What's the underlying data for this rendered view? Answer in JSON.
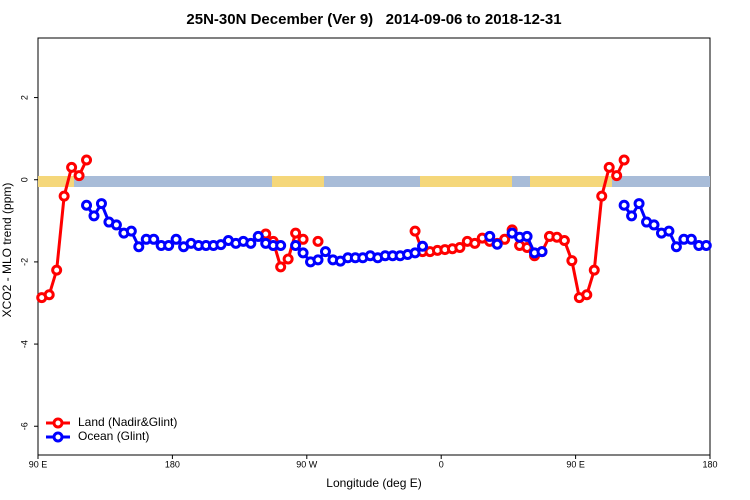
{
  "chart_data": {
    "type": "line",
    "title": "25N-30N December (Ver 9)   2014-09-06 to 2018-12-31",
    "x_label": "Longitude (deg E)",
    "y_label": "XCO2 - MLO trend (ppm)",
    "xlim": [
      90,
      540
    ],
    "ylim": [
      -6.7,
      3.45
    ],
    "xticks": [
      {
        "value": 90,
        "label": "90 E"
      },
      180,
      {
        "value": 270,
        "label": "90 W"
      },
      {
        "value": 360,
        "label": "0"
      },
      {
        "value": 450,
        "label": "90 E"
      },
      {
        "value": 540,
        "label": "180"
      }
    ],
    "yticks": [
      -6,
      -4,
      -2,
      0,
      2
    ],
    "legend": "bottom-left",
    "x": [
      92.5,
      97.5,
      102.5,
      107.5,
      112.5,
      117.5,
      122.5,
      127.5,
      132.5,
      137.5,
      142.5,
      147.5,
      152.5,
      157.5,
      162.5,
      167.5,
      172.5,
      177.5,
      182.5,
      187.5,
      192.5,
      197.5,
      202.5,
      207.5,
      212.5,
      217.5,
      222.5,
      227.5,
      232.5,
      237.5,
      242.5,
      247.5,
      252.5,
      257.5,
      262.5,
      267.5,
      272.5,
      277.5,
      282.5,
      287.5,
      292.5,
      297.5,
      302.5,
      307.5,
      312.5,
      317.5,
      322.5,
      327.5,
      332.5,
      337.5,
      342.5,
      347.5,
      352.5,
      357.5,
      362.5,
      367.5,
      372.5,
      377.5,
      382.5,
      387.5,
      392.5,
      397.5,
      402.5,
      407.5,
      412.5,
      417.5,
      422.5,
      427.5,
      432.5,
      437.5,
      442.5,
      447.5,
      452.5,
      457.5,
      462.5,
      467.5,
      472.5,
      477.5,
      482.5,
      487.5,
      492.5,
      497.5,
      502.5,
      507.5,
      512.5,
      517.5,
      522.5,
      527.5,
      532.5,
      537.5
    ],
    "series": [
      {
        "name": "Land (Nadir&Glint)",
        "color": "#ff0000",
        "values": [
          -2.87,
          -2.8,
          -2.2,
          -0.4,
          0.3,
          0.1,
          0.48,
          null,
          null,
          null,
          null,
          null,
          null,
          null,
          null,
          null,
          null,
          null,
          null,
          null,
          null,
          null,
          null,
          null,
          null,
          null,
          null,
          null,
          null,
          null,
          -1.32,
          -1.5,
          -2.12,
          -1.93,
          -1.3,
          -1.45,
          null,
          -1.5,
          null,
          null,
          null,
          null,
          null,
          null,
          null,
          null,
          null,
          null,
          null,
          null,
          -1.25,
          -1.75,
          -1.75,
          -1.72,
          -1.7,
          -1.68,
          -1.65,
          -1.5,
          -1.55,
          -1.42,
          -1.5,
          -1.55,
          -1.45,
          -1.22,
          -1.6,
          -1.65,
          -1.85,
          -1.75,
          -1.38,
          -1.4,
          -1.48,
          -1.97,
          -2.87,
          -2.8,
          -2.2,
          -0.4,
          0.3,
          0.1,
          0.48,
          null,
          null,
          null,
          null,
          null,
          null,
          null,
          null,
          null,
          null,
          null
        ]
      },
      {
        "name": "Ocean (Glint)",
        "color": "#0000ff",
        "values": [
          null,
          null,
          null,
          null,
          null,
          null,
          -0.62,
          -0.88,
          -0.58,
          -1.03,
          -1.1,
          -1.3,
          -1.25,
          -1.63,
          -1.45,
          -1.45,
          -1.6,
          -1.6,
          -1.45,
          -1.63,
          -1.55,
          -1.6,
          -1.6,
          -1.6,
          -1.58,
          -1.48,
          -1.55,
          -1.5,
          -1.55,
          -1.38,
          -1.55,
          -1.6,
          -1.6,
          null,
          -1.6,
          -1.78,
          -2.0,
          -1.95,
          -1.75,
          -1.95,
          -1.98,
          -1.9,
          -1.9,
          -1.9,
          -1.85,
          -1.9,
          -1.85,
          -1.85,
          -1.85,
          -1.82,
          -1.78,
          -1.62,
          null,
          null,
          null,
          null,
          null,
          null,
          null,
          null,
          -1.38,
          -1.57,
          null,
          -1.3,
          -1.4,
          -1.38,
          -1.78,
          -1.75,
          null,
          null,
          null,
          null,
          null,
          null,
          null,
          null,
          null,
          null,
          -0.62,
          -0.88,
          -0.58,
          -1.03,
          -1.1,
          -1.3,
          -1.25,
          -1.63,
          -1.45,
          -1.45,
          -1.6,
          -1.6
        ]
      }
    ]
  }
}
